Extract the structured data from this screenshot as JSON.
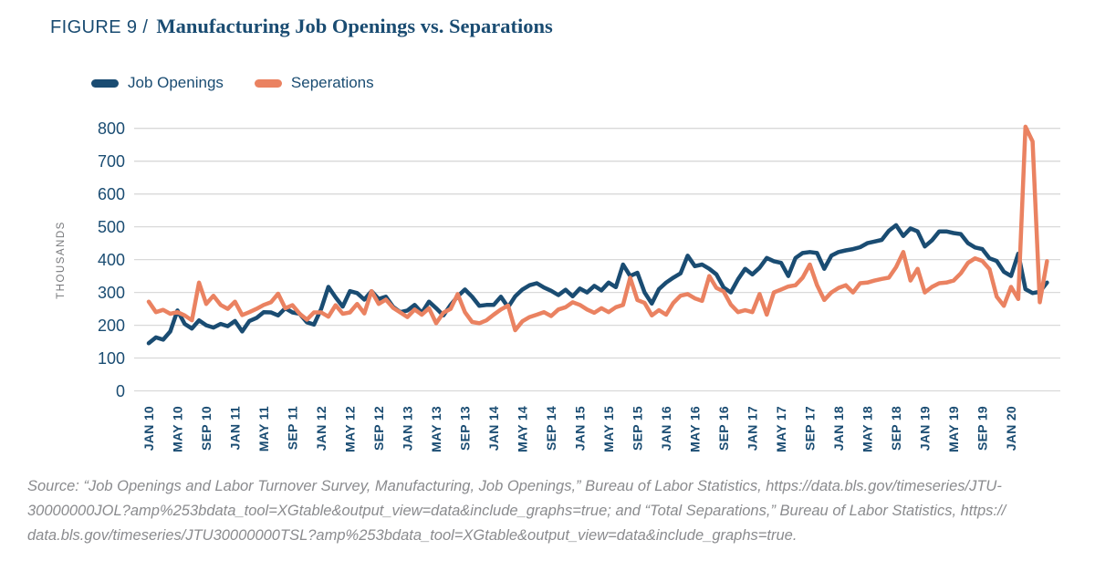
{
  "figure": {
    "label": "FIGURE 9 /",
    "title": "Manufacturing Job Openings vs. Separations"
  },
  "legend": [
    {
      "label": "Job Openings",
      "color": "#1a4c72"
    },
    {
      "label": "Seperations",
      "color": "#ea8261"
    }
  ],
  "y_axis": {
    "label": "THOUSANDS",
    "ticks": [
      800,
      700,
      600,
      500,
      400,
      300,
      200,
      100,
      0
    ],
    "min": 0,
    "max": 800
  },
  "x_axis": {
    "tick_labels": [
      "JAN 10",
      "MAY 10",
      "SEP 10",
      "JAN 11",
      "MAY 11",
      "SEP 11",
      "JAN 12",
      "MAY 12",
      "SEP 12",
      "JAN 13",
      "MAY 13",
      "SEP 13",
      "JAN 14",
      "MAY 14",
      "SEP 14",
      "JAN 15",
      "MAY 15",
      "SEP 15",
      "JAN 16",
      "MAY 16",
      "SEP 16",
      "JAN 17",
      "MAY 17",
      "SEP 17",
      "JAN 18",
      "MAY 18",
      "SEP 18",
      "JAN 19",
      "MAY 19",
      "SEP 19",
      "JAN 20"
    ],
    "months_per_tick": 4
  },
  "colors": {
    "navy": "#1a4c72",
    "orange": "#ea8261",
    "gridline": "#d9d9d9",
    "axis_unit": "#77787b",
    "source_text": "#8a8b8e"
  },
  "source_lines": [
    "Source: “Job Openings and Labor Turnover Survey, Manufacturing, Job Openings,” Bureau of Labor Statistics, https://data.bls.gov/timeseries/JTU-",
    "30000000JOL?amp%253bdata_tool=XGtable&output_view=data&include_graphs=true; and “Total Separations,” Bureau of Labor Statistics, https://",
    "data.bls.gov/timeseries/JTU30000000TSL?amp%253bdata_tool=XGtable&output_view=data&include_graphs=true."
  ],
  "chart_data": {
    "type": "line",
    "unit": "thousands",
    "frequency": "monthly",
    "x_start": "JAN 2010",
    "x_end": "JUN 2020",
    "ylim": [
      0,
      800
    ],
    "grid": true,
    "legend_position": "top-left",
    "series": [
      {
        "name": "Job Openings",
        "color": "#1a4c72",
        "values": [
          145,
          163,
          156,
          181,
          245,
          204,
          190,
          215,
          200,
          193,
          204,
          197,
          213,
          181,
          213,
          222,
          240,
          239,
          230,
          252,
          239,
          235,
          209,
          202,
          250,
          317,
          285,
          257,
          304,
          298,
          278,
          304,
          280,
          287,
          256,
          240,
          245,
          262,
          238,
          272,
          252,
          230,
          262,
          288,
          309,
          287,
          259,
          262,
          262,
          287,
          255,
          288,
          309,
          322,
          328,
          315,
          305,
          292,
          308,
          288,
          312,
          300,
          320,
          306,
          330,
          316,
          385,
          350,
          360,
          300,
          266,
          310,
          330,
          345,
          358,
          412,
          380,
          385,
          372,
          355,
          315,
          300,
          340,
          372,
          355,
          375,
          405,
          395,
          390,
          350,
          405,
          420,
          423,
          420,
          372,
          412,
          423,
          428,
          432,
          438,
          450,
          455,
          460,
          488,
          505,
          472,
          495,
          486,
          440,
          459,
          486,
          486,
          481,
          478,
          450,
          437,
          432,
          404,
          396,
          363,
          350,
          418,
          310,
          298,
          302,
          330
        ]
      },
      {
        "name": "Seperations",
        "color": "#ea8261",
        "values": [
          272,
          240,
          247,
          235,
          240,
          230,
          215,
          330,
          265,
          290,
          262,
          250,
          272,
          231,
          240,
          250,
          262,
          270,
          296,
          252,
          261,
          235,
          217,
          239,
          239,
          226,
          261,
          235,
          239,
          265,
          236,
          304,
          265,
          278,
          253,
          239,
          225,
          248,
          232,
          252,
          206,
          238,
          250,
          295,
          240,
          210,
          206,
          215,
          232,
          248,
          260,
          185,
          212,
          225,
          232,
          240,
          228,
          248,
          255,
          270,
          262,
          248,
          238,
          252,
          240,
          255,
          262,
          345,
          277,
          268,
          230,
          246,
          232,
          268,
          290,
          295,
          282,
          274,
          350,
          314,
          303,
          263,
          240,
          246,
          240,
          295,
          232,
          300,
          309,
          318,
          322,
          345,
          385,
          322,
          277,
          300,
          314,
          322,
          300,
          328,
          330,
          336,
          341,
          345,
          377,
          423,
          336,
          372,
          300,
          317,
          328,
          330,
          336,
          358,
          390,
          404,
          396,
          371,
          287,
          259,
          317,
          280,
          805,
          760,
          270,
          395
        ]
      }
    ]
  }
}
